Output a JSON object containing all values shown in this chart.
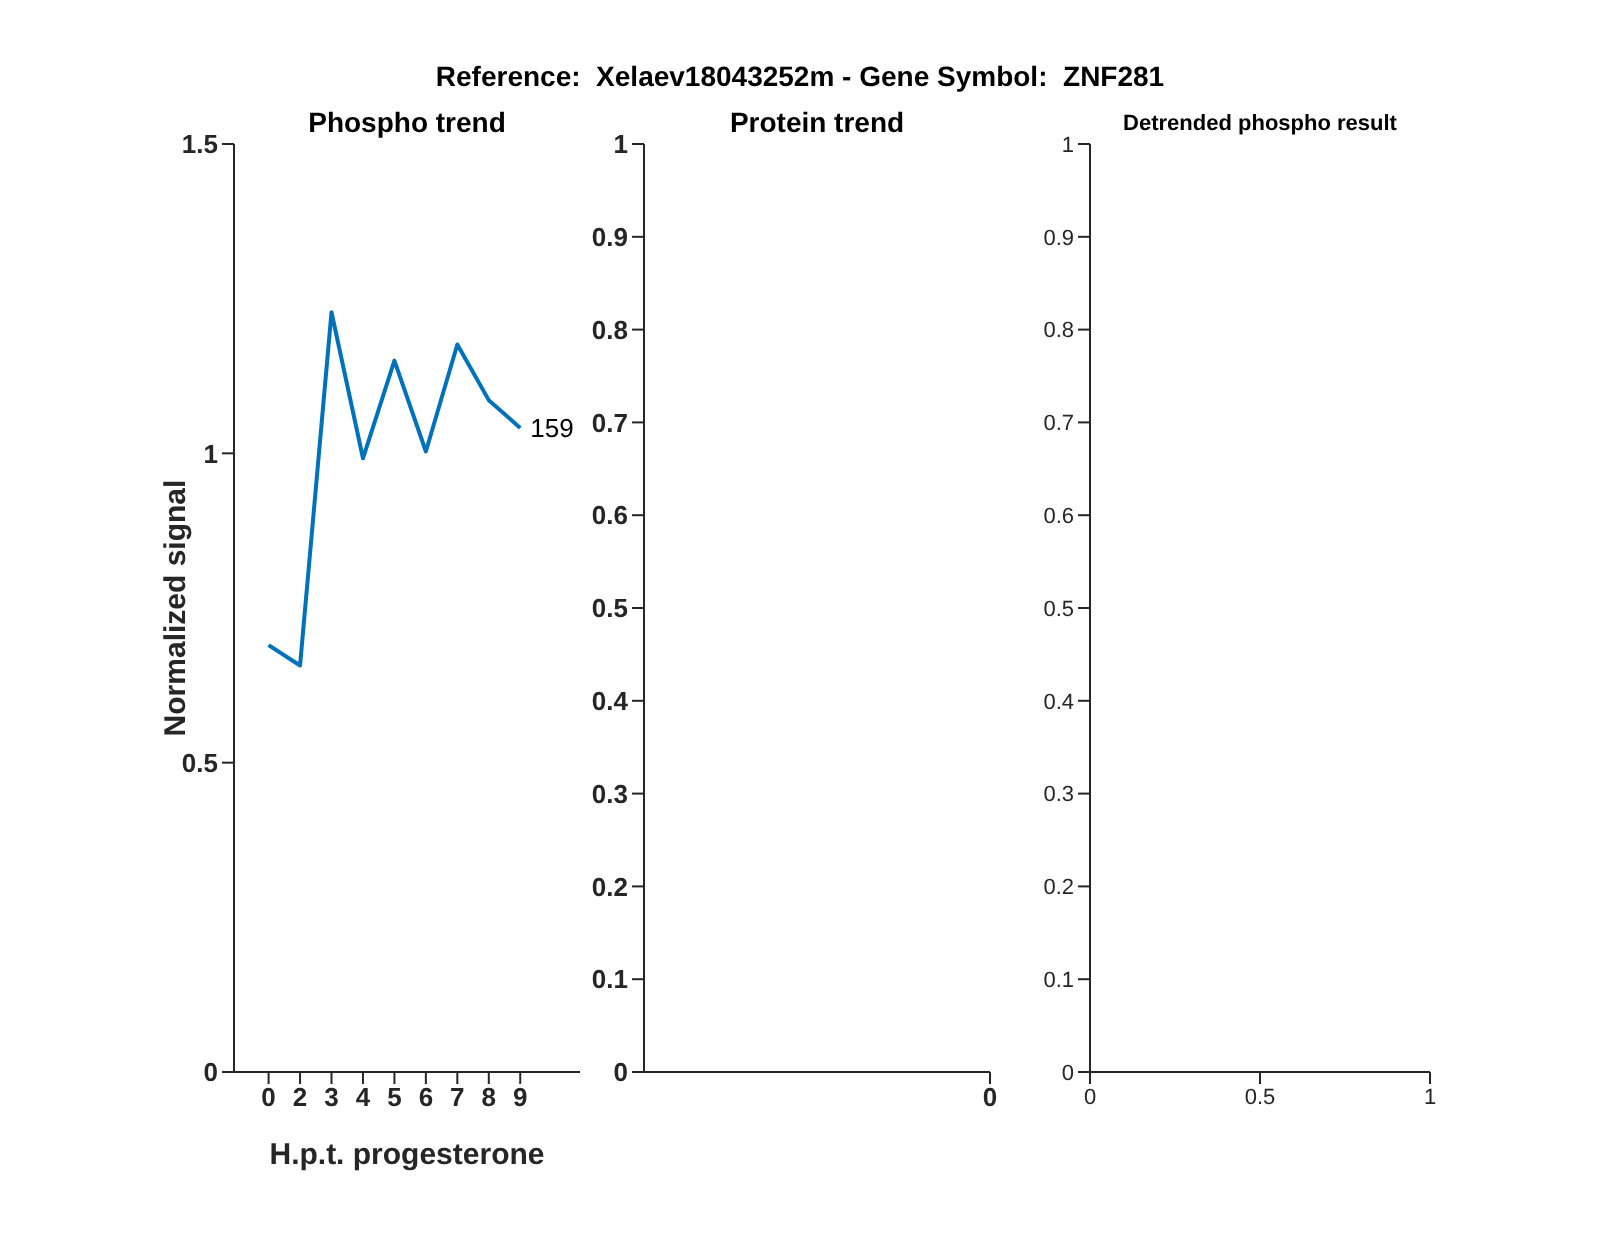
{
  "chart_data": [
    {
      "type": "line",
      "title": "Phospho trend",
      "xlabel": "H.p.t. progesterone",
      "ylabel": "Normalized signal",
      "categories": [
        "0",
        "2",
        "3",
        "4",
        "5",
        "6",
        "7",
        "8",
        "9"
      ],
      "series": [
        {
          "color": "#0072bd",
          "values": [
            0.69,
            0.657,
            1.228,
            0.992,
            1.15,
            1.003,
            1.176,
            1.086,
            1.041
          ]
        }
      ],
      "ylim": [
        0,
        1.5
      ],
      "yticks": [
        0,
        0.5,
        1,
        1.5
      ],
      "annotations": [
        "Reference:  Xelaev18043252m - Gene Symbol:  ZNF281",
        {
          "text": "159",
          "x": "9",
          "y": 1.041
        }
      ]
    },
    {
      "type": "line",
      "title": "Protein trend",
      "categories": [
        "0"
      ],
      "ylim": [
        0,
        1
      ],
      "yticks": [
        0,
        0.1,
        0.2,
        0.3,
        0.4,
        0.5,
        0.6,
        0.7,
        0.8,
        0.9,
        1
      ]
    },
    {
      "type": "line",
      "title": "Detrended phospho result",
      "xlim": [
        0,
        1
      ],
      "xticks": [
        0,
        0.5,
        1
      ],
      "ylim": [
        0,
        1
      ],
      "yticks": [
        0,
        0.1,
        0.2,
        0.3,
        0.4,
        0.5,
        0.6,
        0.7,
        0.8,
        0.9,
        1
      ]
    }
  ]
}
